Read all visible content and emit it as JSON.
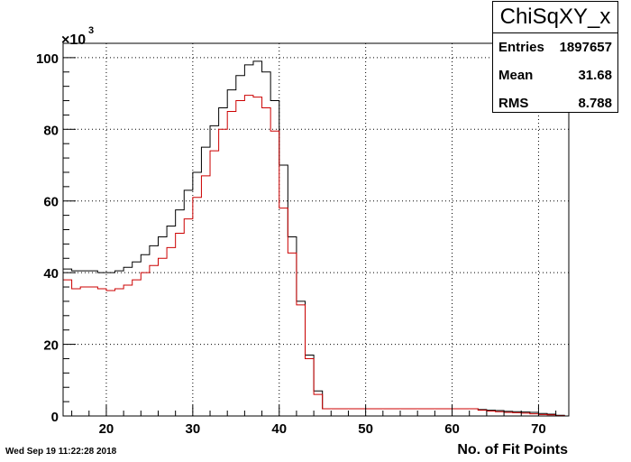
{
  "chart_data": {
    "type": "histogram",
    "title": "ChiSqXY_x",
    "xlabel": "No. of Fit Points",
    "ylabel": "",
    "xlim": [
      15,
      73.5
    ],
    "ylim": [
      0,
      104
    ],
    "y_multiplier_label": "×10",
    "y_multiplier_exponent": "3",
    "x_ticks": [
      20,
      30,
      40,
      50,
      60,
      70
    ],
    "y_ticks": [
      0,
      20,
      40,
      60,
      80,
      100
    ],
    "grid": true,
    "bin_edges": [
      15,
      16,
      17,
      18,
      19,
      20,
      21,
      22,
      23,
      24,
      25,
      26,
      27,
      28,
      29,
      30,
      31,
      32,
      33,
      34,
      35,
      36,
      37,
      38,
      39,
      40,
      41,
      42,
      43,
      44,
      45,
      46,
      47,
      48,
      49,
      50,
      51,
      52,
      53,
      54,
      55,
      56,
      57,
      58,
      59,
      60,
      61,
      62,
      63,
      64,
      65,
      66,
      67,
      68,
      69,
      70,
      71,
      72,
      73
    ],
    "series": [
      {
        "color": "#000000",
        "values": [
          41,
          40.5,
          40.5,
          40.5,
          40,
          40,
          40.5,
          41.5,
          43,
          45,
          47.5,
          50,
          53,
          57.5,
          63,
          68,
          75,
          81,
          86,
          91,
          95,
          98,
          99,
          96,
          88,
          70,
          50,
          32,
          17,
          7,
          2,
          2,
          2,
          2,
          2,
          2,
          2,
          2,
          2,
          2,
          2,
          2,
          2,
          2,
          2,
          2,
          2,
          2,
          1.8,
          1.6,
          1.5,
          1.3,
          1.2,
          1.1,
          1,
          0.7,
          0.5,
          0.2
        ]
      },
      {
        "color": "#cc0000",
        "values": [
          38,
          35.5,
          36,
          36,
          35.5,
          35,
          35.5,
          36.5,
          38,
          40,
          42,
          44,
          47,
          51,
          55,
          61,
          67,
          74,
          80,
          85,
          88,
          89.5,
          89,
          86,
          79.5,
          58,
          45.5,
          31,
          16,
          6,
          2,
          2,
          2,
          2,
          2,
          2,
          2,
          2,
          2,
          2,
          2,
          2,
          2,
          2,
          2,
          2,
          2,
          2,
          1.6,
          1.4,
          1.2,
          1,
          0.9,
          0.8,
          0.6,
          0.4,
          0.3,
          0.1
        ]
      }
    ]
  },
  "stats": {
    "title": "ChiSqXY_x",
    "entries_label": "Entries",
    "entries_value": "1897657",
    "mean_label": "Mean",
    "mean_value": "31.68",
    "rms_label": "RMS",
    "rms_value": "8.788"
  },
  "datestamp": "Wed Sep 19 11:22:28 2018"
}
